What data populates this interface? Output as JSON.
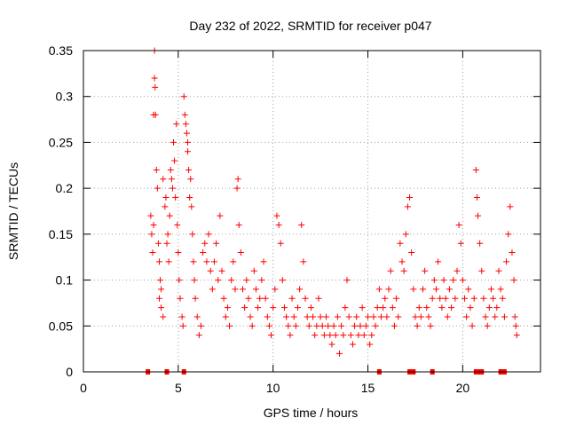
{
  "chart_data": {
    "type": "scatter",
    "title": "Day 232 of 2022, SRMTID for receiver p047",
    "xlabel": "GPS time / hours",
    "ylabel": "SRMTID / TECUs",
    "xlim": [
      0,
      24.1
    ],
    "ylim": [
      0,
      0.35
    ],
    "x_ticks": [
      0,
      5,
      10,
      15,
      20
    ],
    "x_tick_labels": [
      "0",
      "5",
      "10",
      "15",
      "20"
    ],
    "y_ticks": [
      0,
      0.05,
      0.1,
      0.15,
      0.2,
      0.25,
      0.3,
      0.35
    ],
    "y_tick_labels": [
      "0",
      "0.05",
      "0.1",
      "0.15",
      "0.2",
      "0.25",
      "0.3",
      "0.35"
    ],
    "grid": true,
    "legend": "none",
    "marker": "plus",
    "series_color": "#ff0000",
    "series": [
      {
        "name": "SRMTID",
        "points": [
          [
            3.55,
            0.17
          ],
          [
            3.6,
            0.15
          ],
          [
            3.65,
            0.13
          ],
          [
            3.7,
            0.16
          ],
          [
            3.75,
            0.35
          ],
          [
            3.75,
            0.32
          ],
          [
            3.78,
            0.31
          ],
          [
            3.7,
            0.28
          ],
          [
            3.8,
            0.28
          ],
          [
            3.85,
            0.22
          ],
          [
            3.9,
            0.2
          ],
          [
            3.95,
            0.14
          ],
          [
            4.0,
            0.12
          ],
          [
            4.05,
            0.1
          ],
          [
            4.1,
            0.09
          ],
          [
            4.0,
            0.08
          ],
          [
            4.1,
            0.07
          ],
          [
            4.2,
            0.06
          ],
          [
            4.2,
            0.21
          ],
          [
            4.3,
            0.18
          ],
          [
            4.35,
            0.19
          ],
          [
            4.4,
            0.14
          ],
          [
            4.45,
            0.15
          ],
          [
            4.5,
            0.12
          ],
          [
            4.55,
            0.17
          ],
          [
            4.6,
            0.22
          ],
          [
            4.65,
            0.21
          ],
          [
            4.7,
            0.2
          ],
          [
            4.75,
            0.25
          ],
          [
            4.8,
            0.23
          ],
          [
            4.85,
            0.19
          ],
          [
            4.9,
            0.27
          ],
          [
            4.95,
            0.16
          ],
          [
            5.0,
            0.13
          ],
          [
            5.05,
            0.1
          ],
          [
            5.1,
            0.08
          ],
          [
            5.2,
            0.06
          ],
          [
            5.25,
            0.05
          ],
          [
            5.3,
            0.3
          ],
          [
            5.35,
            0.28
          ],
          [
            5.4,
            0.27
          ],
          [
            5.45,
            0.26
          ],
          [
            5.5,
            0.25
          ],
          [
            5.5,
            0.24
          ],
          [
            5.55,
            0.22
          ],
          [
            5.6,
            0.19
          ],
          [
            5.65,
            0.21
          ],
          [
            5.7,
            0.18
          ],
          [
            5.75,
            0.15
          ],
          [
            5.8,
            0.12
          ],
          [
            5.85,
            0.1
          ],
          [
            5.9,
            0.08
          ],
          [
            6.0,
            0.06
          ],
          [
            6.1,
            0.04
          ],
          [
            6.2,
            0.05
          ],
          [
            6.3,
            0.13
          ],
          [
            6.4,
            0.14
          ],
          [
            6.5,
            0.12
          ],
          [
            6.6,
            0.15
          ],
          [
            6.7,
            0.11
          ],
          [
            6.8,
            0.09
          ],
          [
            6.9,
            0.12
          ],
          [
            7.0,
            0.14
          ],
          [
            7.1,
            0.1
          ],
          [
            7.2,
            0.17
          ],
          [
            7.3,
            0.11
          ],
          [
            7.4,
            0.08
          ],
          [
            7.5,
            0.06
          ],
          [
            7.6,
            0.07
          ],
          [
            7.7,
            0.05
          ],
          [
            7.8,
            0.1
          ],
          [
            7.9,
            0.12
          ],
          [
            8.0,
            0.09
          ],
          [
            8.1,
            0.2
          ],
          [
            8.15,
            0.21
          ],
          [
            8.2,
            0.16
          ],
          [
            8.3,
            0.13
          ],
          [
            8.4,
            0.09
          ],
          [
            8.5,
            0.07
          ],
          [
            8.6,
            0.1
          ],
          [
            8.7,
            0.08
          ],
          [
            8.8,
            0.06
          ],
          [
            8.9,
            0.05
          ],
          [
            9.0,
            0.11
          ],
          [
            9.1,
            0.09
          ],
          [
            9.2,
            0.07
          ],
          [
            9.3,
            0.08
          ],
          [
            9.4,
            0.1
          ],
          [
            9.5,
            0.12
          ],
          [
            9.6,
            0.08
          ],
          [
            9.7,
            0.06
          ],
          [
            9.8,
            0.05
          ],
          [
            9.9,
            0.04
          ],
          [
            10.0,
            0.07
          ],
          [
            10.1,
            0.09
          ],
          [
            10.2,
            0.17
          ],
          [
            10.3,
            0.16
          ],
          [
            10.4,
            0.14
          ],
          [
            10.5,
            0.1
          ],
          [
            10.6,
            0.07
          ],
          [
            10.7,
            0.06
          ],
          [
            10.8,
            0.05
          ],
          [
            10.9,
            0.04
          ],
          [
            11.0,
            0.08
          ],
          [
            11.1,
            0.06
          ],
          [
            11.2,
            0.05
          ],
          [
            11.3,
            0.07
          ],
          [
            11.4,
            0.09
          ],
          [
            11.5,
            0.16
          ],
          [
            11.6,
            0.12
          ],
          [
            11.7,
            0.08
          ],
          [
            11.8,
            0.06
          ],
          [
            11.9,
            0.05
          ],
          [
            12.0,
            0.07
          ],
          [
            12.1,
            0.06
          ],
          [
            12.2,
            0.04
          ],
          [
            12.3,
            0.05
          ],
          [
            12.4,
            0.08
          ],
          [
            12.5,
            0.06
          ],
          [
            12.6,
            0.05
          ],
          [
            12.7,
            0.04
          ],
          [
            12.8,
            0.06
          ],
          [
            12.9,
            0.05
          ],
          [
            13.0,
            0.04
          ],
          [
            13.1,
            0.03
          ],
          [
            13.2,
            0.05
          ],
          [
            13.3,
            0.04
          ],
          [
            13.4,
            0.06
          ],
          [
            13.5,
            0.02
          ],
          [
            13.6,
            0.05
          ],
          [
            13.7,
            0.04
          ],
          [
            13.8,
            0.07
          ],
          [
            13.9,
            0.1
          ],
          [
            14.0,
            0.06
          ],
          [
            14.1,
            0.04
          ],
          [
            14.2,
            0.03
          ],
          [
            14.3,
            0.05
          ],
          [
            14.4,
            0.06
          ],
          [
            14.5,
            0.04
          ],
          [
            14.6,
            0.05
          ],
          [
            14.7,
            0.07
          ],
          [
            14.8,
            0.04
          ],
          [
            14.9,
            0.05
          ],
          [
            15.0,
            0.06
          ],
          [
            15.1,
            0.03
          ],
          [
            15.2,
            0.04
          ],
          [
            15.3,
            0.06
          ],
          [
            15.4,
            0.05
          ],
          [
            15.5,
            0.07
          ],
          [
            15.6,
            0.09
          ],
          [
            15.7,
            0.06
          ],
          [
            15.8,
            0.07
          ],
          [
            15.9,
            0.08
          ],
          [
            16.0,
            0.06
          ],
          [
            16.1,
            0.09
          ],
          [
            16.2,
            0.11
          ],
          [
            16.3,
            0.07
          ],
          [
            16.4,
            0.05
          ],
          [
            16.5,
            0.08
          ],
          [
            16.6,
            0.06
          ],
          [
            16.7,
            0.14
          ],
          [
            16.8,
            0.12
          ],
          [
            16.9,
            0.11
          ],
          [
            17.0,
            0.15
          ],
          [
            17.1,
            0.18
          ],
          [
            17.2,
            0.19
          ],
          [
            17.3,
            0.13
          ],
          [
            17.4,
            0.09
          ],
          [
            17.5,
            0.06
          ],
          [
            17.6,
            0.05
          ],
          [
            17.7,
            0.07
          ],
          [
            17.8,
            0.06
          ],
          [
            17.9,
            0.09
          ],
          [
            18.0,
            0.11
          ],
          [
            18.1,
            0.07
          ],
          [
            18.2,
            0.06
          ],
          [
            18.3,
            0.05
          ],
          [
            18.4,
            0.08
          ],
          [
            18.5,
            0.1
          ],
          [
            18.6,
            0.09
          ],
          [
            18.7,
            0.12
          ],
          [
            18.8,
            0.08
          ],
          [
            18.9,
            0.07
          ],
          [
            19.0,
            0.1
          ],
          [
            19.1,
            0.08
          ],
          [
            19.2,
            0.06
          ],
          [
            19.3,
            0.09
          ],
          [
            19.4,
            0.07
          ],
          [
            19.5,
            0.1
          ],
          [
            19.6,
            0.08
          ],
          [
            19.7,
            0.11
          ],
          [
            19.8,
            0.16
          ],
          [
            19.9,
            0.14
          ],
          [
            20.0,
            0.1
          ],
          [
            20.1,
            0.08
          ],
          [
            20.2,
            0.06
          ],
          [
            20.3,
            0.09
          ],
          [
            20.4,
            0.07
          ],
          [
            20.5,
            0.05
          ],
          [
            20.6,
            0.08
          ],
          [
            20.7,
            0.22
          ],
          [
            20.75,
            0.19
          ],
          [
            20.8,
            0.17
          ],
          [
            20.9,
            0.14
          ],
          [
            21.0,
            0.11
          ],
          [
            21.1,
            0.08
          ],
          [
            21.2,
            0.06
          ],
          [
            21.3,
            0.05
          ],
          [
            21.4,
            0.07
          ],
          [
            21.5,
            0.09
          ],
          [
            21.6,
            0.08
          ],
          [
            21.7,
            0.06
          ],
          [
            21.8,
            0.07
          ],
          [
            21.9,
            0.11
          ],
          [
            22.0,
            0.09
          ],
          [
            22.1,
            0.08
          ],
          [
            22.2,
            0.06
          ],
          [
            22.3,
            0.12
          ],
          [
            22.4,
            0.15
          ],
          [
            22.5,
            0.18
          ],
          [
            22.6,
            0.13
          ],
          [
            22.7,
            0.1
          ],
          [
            22.75,
            0.06
          ],
          [
            22.8,
            0.05
          ],
          [
            22.85,
            0.04
          ]
        ]
      }
    ],
    "baseline_markers": [
      3.4,
      4.4,
      5.3,
      15.6,
      17.2,
      17.4,
      18.4,
      20.7,
      20.9,
      21.0,
      22.0,
      22.2
    ]
  }
}
